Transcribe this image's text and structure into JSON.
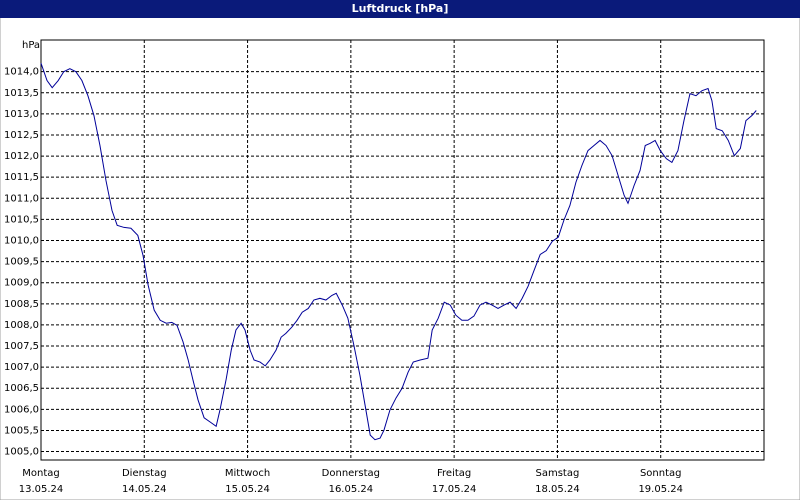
{
  "chart_data": {
    "type": "line",
    "title": "Luftdruck [hPa]",
    "y_unit": "hPa",
    "x": [
      0,
      1.4,
      2.6,
      4.0,
      5.3,
      6.7,
      8.1,
      9.5,
      10.9,
      12.3,
      13.7,
      15.1,
      16.5,
      17.7,
      19.3,
      20.9,
      22.5,
      23.7,
      24.9,
      26.3,
      27.7,
      29.1,
      30.4,
      31.6,
      33.0,
      34.2,
      35.3,
      36.5,
      37.9,
      39.3,
      40.7,
      41.6,
      43.0,
      44.2,
      45.3,
      46.5,
      47.4,
      48.6,
      49.5,
      50.9,
      52.1,
      53.2,
      54.6,
      55.8,
      56.9,
      58.3,
      59.5,
      60.7,
      62.1,
      63.4,
      64.8,
      66.2,
      67.6,
      68.6,
      70.0,
      71.3,
      72.7,
      74.1,
      75.3,
      76.5,
      77.6,
      78.8,
      79.7,
      81.1,
      82.5,
      83.9,
      85.3,
      86.5,
      88.1,
      89.9,
      90.9,
      92.3,
      93.7,
      95.1,
      96.4,
      97.8,
      99.2,
      100.6,
      102.0,
      103.4,
      104.8,
      106.2,
      107.6,
      109.0,
      110.4,
      111.8,
      113.2,
      114.6,
      116.0,
      117.4,
      118.8,
      120.2,
      121.5,
      122.9,
      124.3,
      125.7,
      127.1,
      128.5,
      129.9,
      131.3,
      132.7,
      134.1,
      135.5,
      136.4,
      137.8,
      139.2,
      140.4,
      141.5,
      142.7,
      143.9,
      145.3,
      146.6,
      148.0,
      149.4,
      150.8,
      152.2,
      153.6,
      155.0,
      155.9,
      156.9,
      158.3,
      159.7,
      161.1,
      162.5,
      163.8,
      165.2,
      166.2
    ],
    "series": [
      {
        "name": "Luftdruck",
        "color": "#000099",
        "values": [
          1014.2,
          1013.79,
          1013.62,
          1013.79,
          1014.0,
          1014.07,
          1014.0,
          1013.79,
          1013.43,
          1012.96,
          1012.25,
          1011.42,
          1010.71,
          1010.36,
          1010.31,
          1010.29,
          1010.12,
          1009.65,
          1008.94,
          1008.35,
          1008.11,
          1008.04,
          1008.06,
          1007.99,
          1007.6,
          1007.17,
          1006.7,
          1006.22,
          1005.8,
          1005.7,
          1005.6,
          1005.99,
          1006.7,
          1007.4,
          1007.88,
          1008.04,
          1007.88,
          1007.4,
          1007.17,
          1007.12,
          1007.03,
          1007.17,
          1007.4,
          1007.71,
          1007.8,
          1007.95,
          1008.11,
          1008.3,
          1008.39,
          1008.59,
          1008.63,
          1008.59,
          1008.7,
          1008.75,
          1008.47,
          1008.16,
          1007.52,
          1006.81,
          1006.1,
          1005.39,
          1005.28,
          1005.32,
          1005.51,
          1005.99,
          1006.27,
          1006.5,
          1006.88,
          1007.12,
          1007.17,
          1007.21,
          1007.88,
          1008.16,
          1008.54,
          1008.47,
          1008.23,
          1008.11,
          1008.11,
          1008.21,
          1008.47,
          1008.54,
          1008.47,
          1008.39,
          1008.47,
          1008.54,
          1008.39,
          1008.63,
          1008.92,
          1009.3,
          1009.67,
          1009.76,
          1009.98,
          1010.08,
          1010.48,
          1010.83,
          1011.38,
          1011.78,
          1012.13,
          1012.25,
          1012.37,
          1012.25,
          1012.01,
          1011.54,
          1011.07,
          1010.88,
          1011.3,
          1011.66,
          1012.25,
          1012.3,
          1012.37,
          1012.13,
          1011.94,
          1011.85,
          1012.13,
          1012.84,
          1013.48,
          1013.43,
          1013.55,
          1013.6,
          1013.31,
          1012.65,
          1012.6,
          1012.37,
          1012.01,
          1012.18,
          1012.84,
          1012.96,
          1013.08
        ]
      }
    ],
    "xlim": [
      0,
      168
    ],
    "xticks": [
      {
        "value": 0,
        "label": "Montag",
        "date": "13.05.24"
      },
      {
        "value": 24,
        "label": "Dienstag",
        "date": "14.05.24"
      },
      {
        "value": 48,
        "label": "Mittwoch",
        "date": "15.05.24"
      },
      {
        "value": 72,
        "label": "Donnerstag",
        "date": "16.05.24"
      },
      {
        "value": 96,
        "label": "Freitag",
        "date": "17.05.24"
      },
      {
        "value": 120,
        "label": "Samstag",
        "date": "18.05.24"
      },
      {
        "value": 144,
        "label": "Sonntag",
        "date": "19.05.24"
      }
    ],
    "ylim": [
      1004.8,
      1014.75
    ],
    "yticks": [
      {
        "value": 1005.0,
        "label": "1005,0"
      },
      {
        "value": 1005.5,
        "label": "1005,5"
      },
      {
        "value": 1006.0,
        "label": "1006,0"
      },
      {
        "value": 1006.5,
        "label": "1006,5"
      },
      {
        "value": 1007.0,
        "label": "1007,0"
      },
      {
        "value": 1007.5,
        "label": "1007,5"
      },
      {
        "value": 1008.0,
        "label": "1008,0"
      },
      {
        "value": 1008.5,
        "label": "1008,5"
      },
      {
        "value": 1009.0,
        "label": "1009,0"
      },
      {
        "value": 1009.5,
        "label": "1009,5"
      },
      {
        "value": 1010.0,
        "label": "1010,0"
      },
      {
        "value": 1010.5,
        "label": "1010,5"
      },
      {
        "value": 1011.0,
        "label": "1011,0"
      },
      {
        "value": 1011.5,
        "label": "1011,5"
      },
      {
        "value": 1012.0,
        "label": "1012,0"
      },
      {
        "value": 1012.5,
        "label": "1012,5"
      },
      {
        "value": 1013.0,
        "label": "1013,0"
      },
      {
        "value": 1013.5,
        "label": "1013,5"
      },
      {
        "value": 1014.0,
        "label": "1014,0"
      }
    ],
    "grid": true
  }
}
